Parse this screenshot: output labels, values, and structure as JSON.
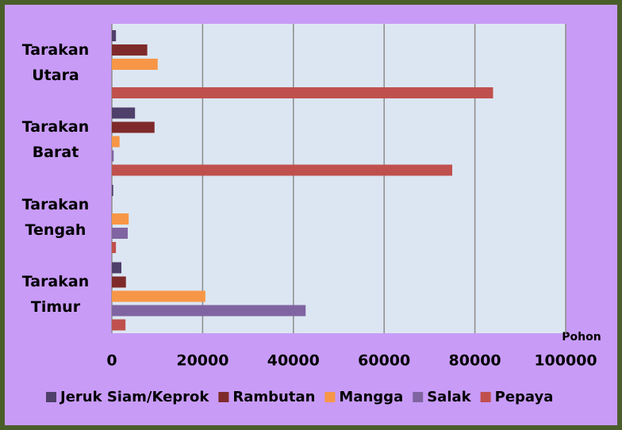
{
  "chart_data": {
    "type": "bar",
    "orientation": "horizontal",
    "x_label": "Pohon",
    "categories": [
      "Tarakan Utara",
      "Tarakan Barat",
      "Tarakan Tengah",
      "Tarakan Timur"
    ],
    "series": [
      {
        "name": "Jeruk Siam/Keprok",
        "color": "#4f3f6b",
        "values": [
          900,
          5100,
          300,
          2100
        ]
      },
      {
        "name": "Rambutan",
        "color": "#7f2a2a",
        "values": [
          7800,
          9400,
          0,
          3100
        ]
      },
      {
        "name": "Mangga",
        "color": "#f79646",
        "values": [
          10100,
          1700,
          3700,
          20600
        ]
      },
      {
        "name": "Salak",
        "color": "#8064a2",
        "values": [
          0,
          400,
          3500,
          42700
        ]
      },
      {
        "name": "Pepaya",
        "color": "#c0504d",
        "values": [
          84000,
          75000,
          900,
          3000
        ]
      }
    ],
    "xlim": [
      0,
      100000
    ],
    "xticks": [
      0,
      20000,
      40000,
      60000,
      80000,
      100000
    ],
    "grid": true,
    "legend": "bottom"
  }
}
